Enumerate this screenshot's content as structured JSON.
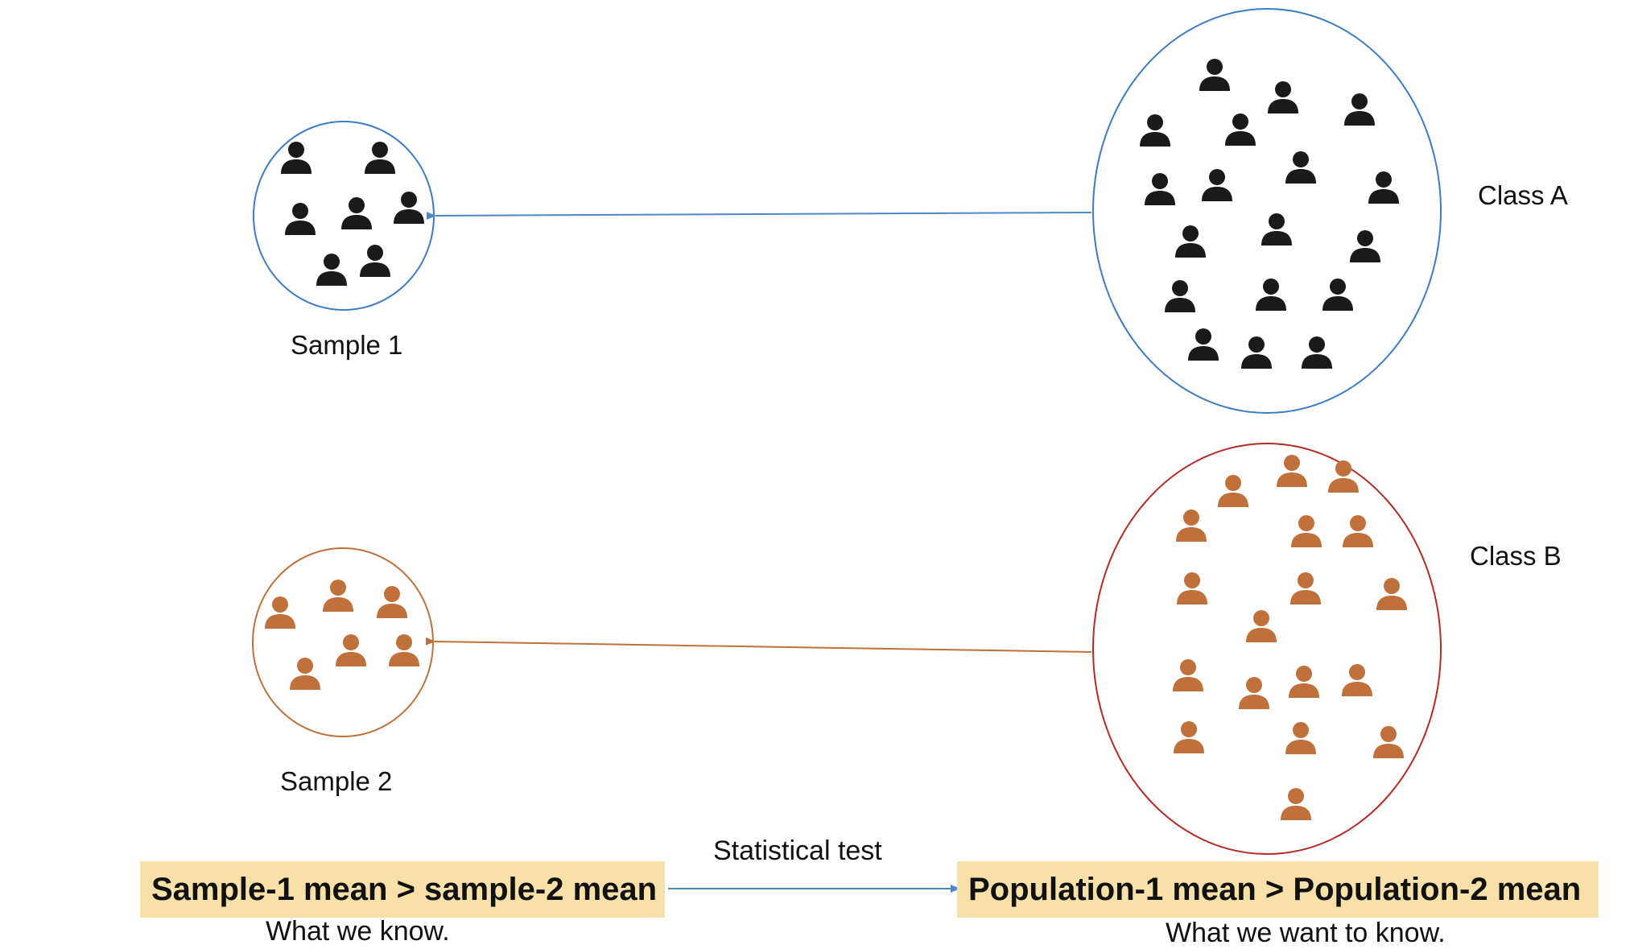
{
  "colors": {
    "class_a_person": "#1a1a1a",
    "class_b_person": "#c0703a",
    "class_a_circle": "#3a7bc8",
    "sample2_circle": "#c0703a",
    "class_b_circle": "#b52a22",
    "arrow_a": "#4f87c8",
    "arrow_b": "#c0703a",
    "arrow_test": "#4f87c8",
    "highlight_box": "#f7e1a8"
  },
  "icons": {
    "person": "person-icon"
  },
  "labels": {
    "sample1": "Sample 1",
    "sample2": "Sample 2",
    "class_a": "Class A",
    "class_b": "Class B",
    "statistical_test": "Statistical test"
  },
  "boxes": {
    "known": "Sample-1 mean > sample-2 mean",
    "unknown": "Population-1 mean > Population-2 mean"
  },
  "captions": {
    "known": "What we know.",
    "unknown": "What we want to know."
  }
}
